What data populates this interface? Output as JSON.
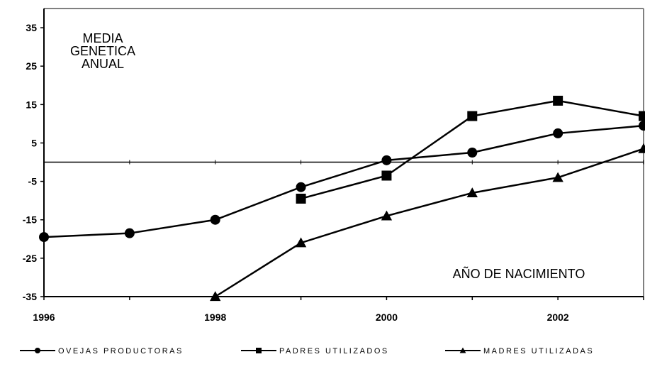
{
  "chart_data": {
    "type": "line",
    "x": [
      1996,
      1997,
      1998,
      1999,
      2000,
      2001,
      2002,
      2003
    ],
    "xlim": [
      1996,
      2003
    ],
    "ylim": [
      -35,
      40
    ],
    "y_ticks": [
      "35",
      "25",
      "15",
      "5",
      "-5",
      "-15",
      "-25",
      "-35"
    ],
    "x_ticks": [
      "1996",
      "1998",
      "2000",
      "2002"
    ],
    "annotation_top": [
      "MEDIA",
      "GENETICA",
      "ANUAL"
    ],
    "annotation_x": "AÑO DE NACIMIENTO",
    "grid": false,
    "legend_position": "bottom",
    "colors": {
      "line": "#000000",
      "axis": "#000000",
      "frame": "#808080",
      "background": "#ffffff"
    },
    "series": [
      {
        "name": "OVEJAS PRODUCTORAS",
        "marker": "circle",
        "x": [
          1996,
          1997,
          1998,
          1999,
          2000,
          2001,
          2002,
          2003
        ],
        "values": [
          -19.5,
          -18.5,
          -15,
          -6.5,
          0.5,
          2.5,
          7.5,
          9.5
        ]
      },
      {
        "name": "PADRES UTILIZADOS",
        "marker": "square",
        "x": [
          1999,
          2000,
          2001,
          2002,
          2003
        ],
        "values": [
          -9.5,
          -3.5,
          12,
          16,
          12
        ]
      },
      {
        "name": "MADRES UTILIZADAS",
        "marker": "triangle",
        "x": [
          1998,
          1999,
          2000,
          2001,
          2002,
          2003
        ],
        "values": [
          -35,
          -21,
          -14,
          -8,
          -4,
          3.5
        ]
      }
    ]
  }
}
